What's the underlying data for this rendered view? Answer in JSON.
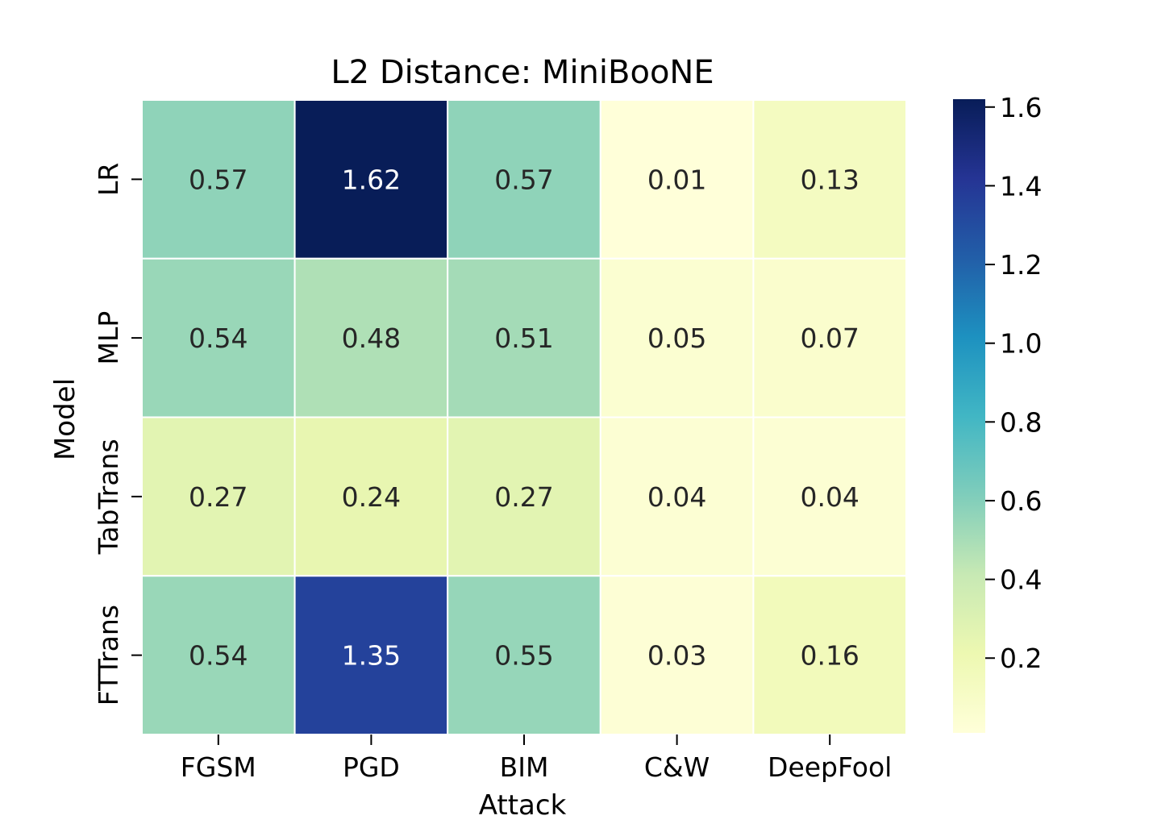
{
  "chart_data": {
    "type": "heatmap",
    "title": "L2 Distance: MiniBooNE",
    "xlabel": "Attack",
    "ylabel": "Model",
    "x_categories": [
      "FGSM",
      "PGD",
      "BIM",
      "C&W",
      "DeepFool"
    ],
    "y_categories": [
      "LR",
      "MLP",
      "TabTrans",
      "FTTrans"
    ],
    "values": [
      [
        0.57,
        1.62,
        0.57,
        0.01,
        0.13
      ],
      [
        0.54,
        0.48,
        0.51,
        0.05,
        0.07
      ],
      [
        0.27,
        0.24,
        0.27,
        0.04,
        0.04
      ],
      [
        0.54,
        1.35,
        0.55,
        0.03,
        0.16
      ]
    ],
    "value_labels": [
      [
        "0.57",
        "1.62",
        "0.57",
        "0.01",
        "0.13"
      ],
      [
        "0.54",
        "0.48",
        "0.51",
        "0.05",
        "0.07"
      ],
      [
        "0.27",
        "0.24",
        "0.27",
        "0.04",
        "0.04"
      ],
      [
        "0.54",
        "1.35",
        "0.55",
        "0.03",
        "0.16"
      ]
    ],
    "colormap": "YlGnBu",
    "colormap_stops": [
      "#ffffd9",
      "#edf8b1",
      "#c7e9b4",
      "#7fcdbb",
      "#41b6c4",
      "#1d91c0",
      "#225ea8",
      "#253494",
      "#081d58"
    ],
    "vmin": 0.01,
    "vmax": 1.62,
    "colorbar_ticks": [
      0.2,
      0.4,
      0.6,
      0.8,
      1.0,
      1.2,
      1.4,
      1.6
    ],
    "colorbar_tick_labels": [
      "0.2",
      "0.4",
      "0.6",
      "0.8",
      "1.0",
      "1.2",
      "1.4",
      "1.6"
    ],
    "annotation_dark_color": "#262626",
    "annotation_light_color": "#ffffff",
    "grid_line_color": "#ffffff"
  }
}
